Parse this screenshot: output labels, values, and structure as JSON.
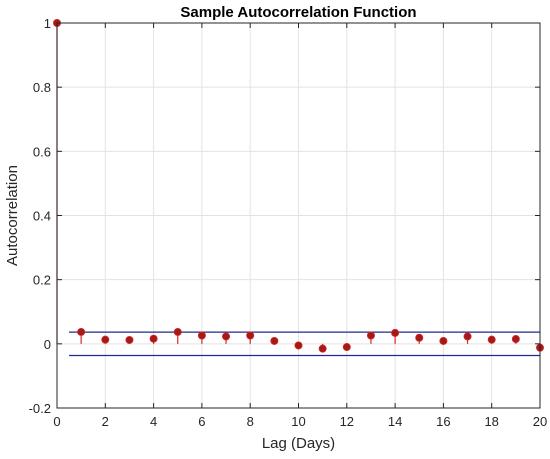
{
  "chart_data": {
    "type": "stem",
    "title": "Sample Autocorrelation Function",
    "xlabel": "Lag (Days)",
    "ylabel": "Autocorrelation",
    "xlim": [
      0,
      20
    ],
    "ylim": [
      -0.2,
      1
    ],
    "xticks": [
      "0",
      "2",
      "4",
      "6",
      "8",
      "10",
      "12",
      "14",
      "16",
      "18",
      "20"
    ],
    "yticks": [
      "-0.2",
      "0",
      "0.2",
      "0.4",
      "0.6",
      "0.8",
      "1"
    ],
    "grid": true,
    "x": [
      0,
      1,
      2,
      3,
      4,
      5,
      6,
      7,
      8,
      9,
      10,
      11,
      12,
      13,
      14,
      15,
      16,
      17,
      18,
      19,
      20
    ],
    "values": [
      1.0,
      0.037,
      0.013,
      0.012,
      0.016,
      0.037,
      0.026,
      0.023,
      0.026,
      0.009,
      -0.005,
      -0.015,
      -0.01,
      0.026,
      0.034,
      0.019,
      0.009,
      0.023,
      0.013,
      0.015,
      -0.012
    ],
    "confidence_bounds": [
      0.0364,
      -0.0364
    ],
    "colors": {
      "stem": "#d9262c",
      "marker": "#a31b14",
      "bounds": "#1f2a8f",
      "grid": "#e3e3e3",
      "axis": "#262626"
    }
  }
}
